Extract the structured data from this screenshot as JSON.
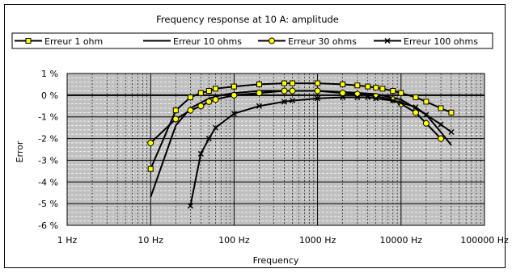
{
  "chart_data": {
    "type": "line",
    "title": "Frequency response at 10 A: amplitude",
    "xlabel": "Frequency",
    "ylabel": "Error",
    "x_scale": "log",
    "xlim": [
      1,
      100000
    ],
    "ylim": [
      -6,
      1
    ],
    "x_ticks": [
      1,
      10,
      100,
      1000,
      10000,
      100000
    ],
    "x_tick_labels": [
      "1 Hz",
      "10 Hz",
      "100 Hz",
      "1000 Hz",
      "10000 Hz",
      "100000 Hz"
    ],
    "y_ticks": [
      1,
      0,
      -1,
      -2,
      -3,
      -4,
      -5,
      -6
    ],
    "y_tick_labels": [
      "1 %",
      "0 %",
      "-1 %",
      "-2 %",
      "-3 %",
      "-4 %",
      "-5 %",
      "-6 %"
    ],
    "grid": true,
    "plot_background": "#c0c0c0",
    "legend_position": "top",
    "series": [
      {
        "name": "Erreur 1 ohm",
        "marker": "square",
        "color": "#000000",
        "marker_fill": "#ffff00",
        "points": [
          [
            10,
            -3.4
          ],
          [
            20,
            -0.7
          ],
          [
            30,
            -0.1
          ],
          [
            40,
            0.1
          ],
          [
            50,
            0.2
          ],
          [
            60,
            0.3
          ],
          [
            100,
            0.4
          ],
          [
            200,
            0.5
          ],
          [
            400,
            0.55
          ],
          [
            500,
            0.55
          ],
          [
            1000,
            0.55
          ],
          [
            2000,
            0.5
          ],
          [
            3000,
            0.45
          ],
          [
            4000,
            0.4
          ],
          [
            5000,
            0.35
          ],
          [
            6000,
            0.3
          ],
          [
            8000,
            0.2
          ],
          [
            10000,
            0.1
          ],
          [
            15000,
            -0.1
          ],
          [
            20000,
            -0.3
          ],
          [
            30000,
            -0.6
          ],
          [
            40000,
            -0.8
          ]
        ]
      },
      {
        "name": "Erreur 10 ohms",
        "marker": "none",
        "color": "#000000",
        "points": [
          [
            10,
            -4.7
          ],
          [
            20,
            -1.4
          ],
          [
            30,
            -0.6
          ],
          [
            50,
            -0.15
          ],
          [
            70,
            0.0
          ],
          [
            100,
            0.1
          ],
          [
            200,
            0.2
          ],
          [
            500,
            0.2
          ],
          [
            1000,
            0.2
          ],
          [
            2000,
            0.15
          ],
          [
            5000,
            0.05
          ],
          [
            10000,
            -0.2
          ],
          [
            20000,
            -0.9
          ],
          [
            30000,
            -1.7
          ],
          [
            40000,
            -2.3
          ]
        ]
      },
      {
        "name": "Erreur 30 ohms",
        "marker": "circle",
        "color": "#000000",
        "marker_fill": "#ffff00",
        "points": [
          [
            10,
            -2.2
          ],
          [
            20,
            -1.1
          ],
          [
            30,
            -0.7
          ],
          [
            40,
            -0.5
          ],
          [
            50,
            -0.3
          ],
          [
            60,
            -0.2
          ],
          [
            100,
            0.0
          ],
          [
            200,
            0.1
          ],
          [
            400,
            0.2
          ],
          [
            500,
            0.2
          ],
          [
            1000,
            0.2
          ],
          [
            2000,
            0.1
          ],
          [
            3000,
            0.05
          ],
          [
            5000,
            -0.05
          ],
          [
            8000,
            -0.2
          ],
          [
            10000,
            -0.4
          ],
          [
            15000,
            -0.8
          ],
          [
            20000,
            -1.3
          ],
          [
            30000,
            -2.0
          ]
        ]
      },
      {
        "name": "Erreur 100 ohms",
        "marker": "x",
        "color": "#000000",
        "points": [
          [
            30,
            -5.1
          ],
          [
            40,
            -2.7
          ],
          [
            50,
            -2.0
          ],
          [
            60,
            -1.5
          ],
          [
            100,
            -0.85
          ],
          [
            200,
            -0.5
          ],
          [
            400,
            -0.3
          ],
          [
            500,
            -0.25
          ],
          [
            1000,
            -0.15
          ],
          [
            2000,
            -0.1
          ],
          [
            3000,
            -0.1
          ],
          [
            4000,
            -0.1
          ],
          [
            5000,
            -0.15
          ],
          [
            8000,
            -0.25
          ],
          [
            10000,
            -0.35
          ],
          [
            15000,
            -0.55
          ],
          [
            20000,
            -0.9
          ],
          [
            30000,
            -1.35
          ],
          [
            40000,
            -1.7
          ]
        ]
      }
    ]
  }
}
